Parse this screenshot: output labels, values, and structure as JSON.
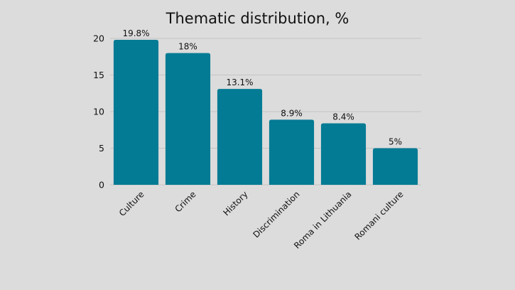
{
  "chart_data": {
    "type": "bar",
    "title": "Thematic distribution, %",
    "categories": [
      "Culture",
      "Crime",
      "History",
      "Discrimination",
      "Roma in Lithuania",
      "Romani culture"
    ],
    "values": [
      19.8,
      18,
      13.1,
      8.9,
      8.4,
      5
    ],
    "data_labels": [
      "19.8%",
      "18%",
      "13.1%",
      "8.9%",
      "8.4%",
      "5%"
    ],
    "yticks": [
      "0",
      "5",
      "10",
      "15",
      "20"
    ],
    "ylim": [
      0,
      20
    ],
    "xlabel": "",
    "ylabel": "",
    "grid": true,
    "bar_color": "#047b94",
    "grid_color": "#c4c4c4"
  }
}
